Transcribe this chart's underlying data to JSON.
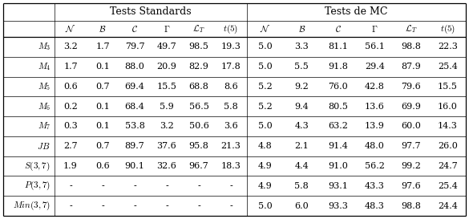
{
  "ts_data": [
    [
      "3.2",
      "1.7",
      "79.7",
      "49.7",
      "98.5",
      "19.3"
    ],
    [
      "1.7",
      "0.1",
      "88.0",
      "20.9",
      "82.9",
      "17.8"
    ],
    [
      "0.6",
      "0.7",
      "69.4",
      "15.5",
      "68.8",
      "8.6"
    ],
    [
      "0.2",
      "0.1",
      "68.4",
      "5.9",
      "56.5",
      "5.8"
    ],
    [
      "0.3",
      "0.1",
      "53.8",
      "3.2",
      "50.6",
      "3.6"
    ],
    [
      "2.7",
      "0.7",
      "89.7",
      "37.6",
      "95.8",
      "21.3"
    ],
    [
      "1.9",
      "0.6",
      "90.1",
      "32.6",
      "96.7",
      "18.3"
    ],
    [
      "-",
      "-",
      "-",
      "-",
      "-",
      "-"
    ],
    [
      "-",
      "-",
      "-",
      "-",
      "-",
      "-"
    ]
  ],
  "mc_data": [
    [
      "5.0",
      "3.3",
      "81.1",
      "56.1",
      "98.8",
      "22.3"
    ],
    [
      "5.0",
      "5.5",
      "91.8",
      "29.4",
      "87.9",
      "25.4"
    ],
    [
      "5.2",
      "9.2",
      "76.0",
      "42.8",
      "79.6",
      "15.5"
    ],
    [
      "5.2",
      "9.4",
      "80.5",
      "13.6",
      "69.9",
      "16.0"
    ],
    [
      "5.0",
      "4.3",
      "63.2",
      "13.9",
      "60.0",
      "14.3"
    ],
    [
      "4.8",
      "2.1",
      "91.4",
      "48.0",
      "97.7",
      "26.0"
    ],
    [
      "4.9",
      "4.4",
      "91.0",
      "56.2",
      "99.2",
      "24.7"
    ],
    [
      "4.9",
      "5.8",
      "93.1",
      "43.3",
      "97.6",
      "25.4"
    ],
    [
      "5.0",
      "6.0",
      "93.3",
      "48.3",
      "98.8",
      "24.4"
    ]
  ],
  "row_labels": [
    "$M_3$",
    "$M_4$",
    "$M_5$",
    "$M_6$",
    "$M_7$",
    "$JB$",
    "$S(3, 7)$",
    "$P(3, 7)$",
    "$Min(3, 7)$"
  ],
  "ts_col_labels": [
    "$\\mathcal{N}$",
    "$\\mathcal{B}$",
    "$\\mathcal{C}$",
    "$\\Gamma$",
    "$\\mathcal{L}_T$",
    "$t(5)$"
  ],
  "mc_col_labels": [
    "$\\mathcal{N}$",
    "$\\mathcal{B}$",
    "$\\mathcal{C}$",
    "$\\Gamma$",
    "$\\mathcal{L}_T$",
    "$t(5)$"
  ],
  "header_ts": "Tests Standards",
  "header_mc": "Tests de MC",
  "bg_color": "#ffffff",
  "line_color": "#000000",
  "text_color": "#000000",
  "font_size": 8.0,
  "header_font_size": 9.0
}
